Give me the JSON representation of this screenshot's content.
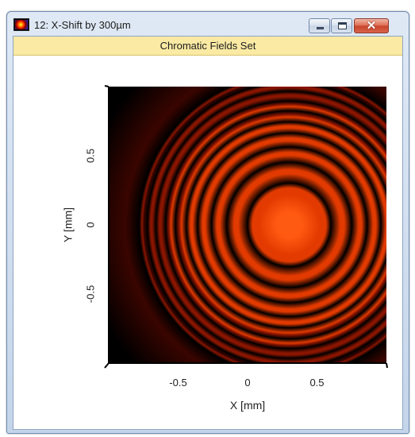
{
  "window": {
    "title": "12: X-Shift by 300µm",
    "icon": "field-intensity-icon",
    "buttons": {
      "minimize": "minimize-icon",
      "maximize": "maximize-icon",
      "close": "close-icon",
      "close_glyph": "✕"
    }
  },
  "panel": {
    "header": "Chromatic Fields Set"
  },
  "chart_data": {
    "type": "heatmap",
    "title": "",
    "xlabel": "X [mm]",
    "ylabel": "Y [mm]",
    "xlim": [
      -1.0,
      1.0
    ],
    "ylim": [
      -1.0,
      1.0
    ],
    "x_ticks": [
      -0.5,
      0,
      0.5
    ],
    "y_ticks": [
      -0.5,
      0,
      0.5
    ],
    "x_tick_labels": [
      "-0.5",
      "0",
      "0.5"
    ],
    "y_tick_labels": [
      "-0.5",
      "0",
      "0.5"
    ],
    "center": [
      0.3,
      0.0
    ],
    "dark_ring_radii": [
      0.3,
      0.45,
      0.56,
      0.66,
      0.74,
      0.82,
      0.89,
      0.96,
      1.02,
      1.08
    ],
    "colormap": [
      "#000000",
      "#3a0500",
      "#8a1500",
      "#e23a00",
      "#ff5a12"
    ],
    "grid": false
  }
}
